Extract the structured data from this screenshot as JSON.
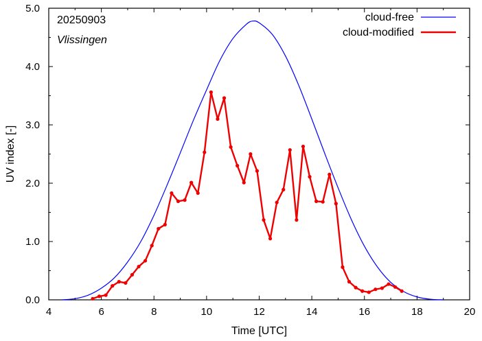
{
  "chart_data": {
    "type": "line",
    "xlabel": "Time  [UTC]",
    "ylabel": "UV index  [-]",
    "xlim": [
      4,
      20
    ],
    "ylim": [
      0,
      5
    ],
    "x_ticks": [
      4,
      6,
      8,
      10,
      12,
      14,
      16,
      18,
      20
    ],
    "y_ticks": [
      0,
      1,
      2,
      3,
      4,
      5
    ],
    "x_tick_labels": [
      "4",
      "6",
      "8",
      "10",
      "12",
      "14",
      "16",
      "18",
      "20"
    ],
    "y_tick_labels": [
      "0.0",
      "1.0",
      "2.0",
      "3.0",
      "4.0",
      "5.0"
    ],
    "grid": false,
    "legend_position": "top-right",
    "annotations": [
      "20250903",
      "Vlissingen"
    ],
    "series": [
      {
        "name": "cloud-free",
        "color": "#0000ff",
        "style": "line",
        "x": [
          4.5,
          5.0,
          5.5,
          6.0,
          6.5,
          7.0,
          7.5,
          8.0,
          8.5,
          9.0,
          9.5,
          10.0,
          10.5,
          11.0,
          11.5,
          11.75,
          12.0,
          12.5,
          13.0,
          13.5,
          14.0,
          14.5,
          15.0,
          15.5,
          16.0,
          16.5,
          17.0,
          17.5,
          18.0,
          18.5,
          19.0
        ],
        "y": [
          0.0,
          0.02,
          0.08,
          0.2,
          0.38,
          0.65,
          1.0,
          1.45,
          1.97,
          2.52,
          3.08,
          3.6,
          4.1,
          4.48,
          4.72,
          4.78,
          4.75,
          4.55,
          4.18,
          3.68,
          3.1,
          2.5,
          1.92,
          1.38,
          0.92,
          0.56,
          0.3,
          0.14,
          0.05,
          0.01,
          0.0
        ]
      },
      {
        "name": "cloud-modified",
        "color": "#ee0000",
        "style": "line-points",
        "x": [
          5.67,
          5.92,
          6.17,
          6.42,
          6.67,
          6.92,
          7.17,
          7.42,
          7.67,
          7.92,
          8.17,
          8.42,
          8.67,
          8.92,
          9.17,
          9.42,
          9.67,
          9.92,
          10.17,
          10.42,
          10.67,
          10.92,
          11.17,
          11.42,
          11.67,
          11.92,
          12.17,
          12.42,
          12.67,
          12.92,
          13.17,
          13.42,
          13.67,
          13.92,
          14.17,
          14.42,
          14.67,
          14.92,
          15.17,
          15.42,
          15.67,
          15.92,
          16.17,
          16.42,
          16.67,
          16.92,
          17.17,
          17.42
        ],
        "y": [
          0.02,
          0.06,
          0.08,
          0.24,
          0.31,
          0.29,
          0.43,
          0.57,
          0.67,
          0.93,
          1.22,
          1.29,
          1.83,
          1.69,
          1.71,
          2.01,
          1.83,
          2.53,
          3.56,
          3.1,
          3.46,
          2.62,
          2.3,
          2.01,
          2.5,
          2.21,
          1.37,
          1.05,
          1.67,
          1.89,
          2.57,
          1.37,
          2.63,
          2.11,
          1.69,
          1.68,
          2.15,
          1.65,
          0.56,
          0.31,
          0.21,
          0.15,
          0.13,
          0.18,
          0.2,
          0.27,
          0.22,
          0.15
        ]
      }
    ]
  }
}
